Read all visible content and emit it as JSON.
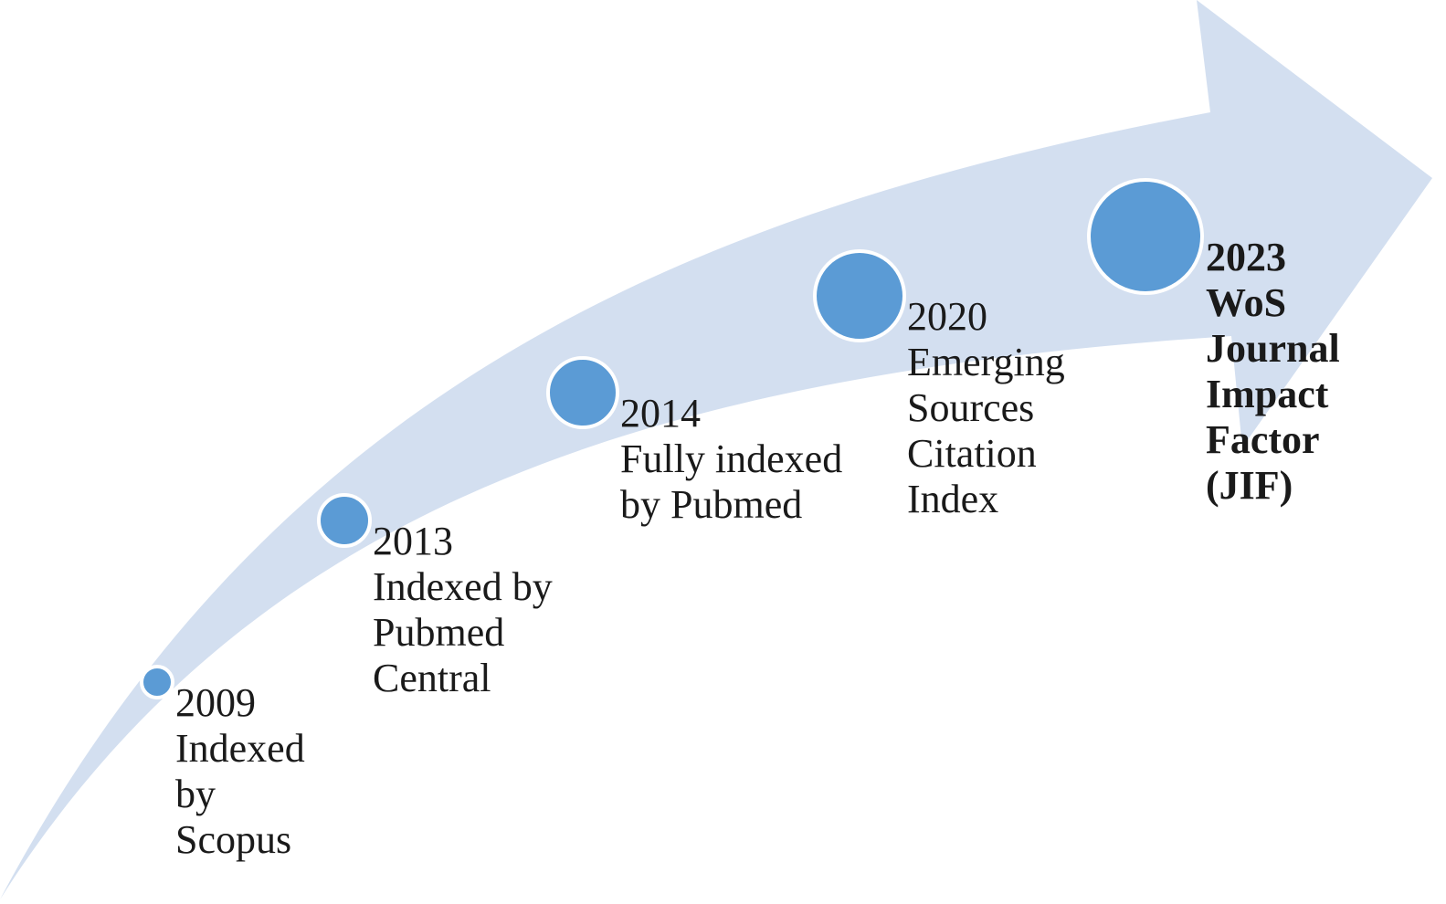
{
  "colors": {
    "arrow_fill": "#d3dff0",
    "dot_fill": "#5b9bd5",
    "dot_border": "#ffffff",
    "text": "#1a1a1a"
  },
  "milestones": [
    {
      "lines": [
        "2009",
        "Indexed",
        "by",
        "Scopus"
      ],
      "bold": false
    },
    {
      "lines": [
        "2013",
        "Indexed by",
        "Pubmed",
        "Central"
      ],
      "bold": false
    },
    {
      "lines": [
        "2014",
        "Fully indexed",
        "by Pubmed"
      ],
      "bold": false
    },
    {
      "lines": [
        "2020",
        "Emerging",
        "Sources",
        "Citation",
        "Index"
      ],
      "bold": false
    },
    {
      "lines": [
        "2023",
        "WoS",
        "Journal",
        "Impact",
        "Factor",
        "(JIF)"
      ],
      "bold": true
    }
  ]
}
